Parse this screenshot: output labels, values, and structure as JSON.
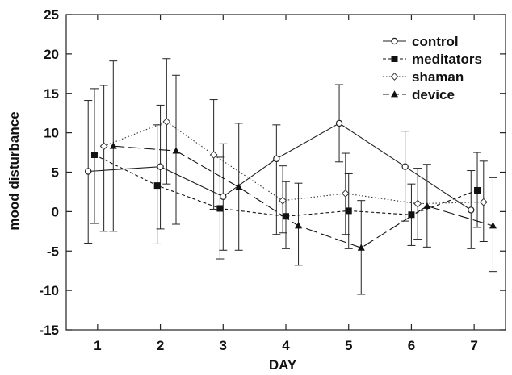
{
  "chart_data": {
    "type": "line",
    "title": "",
    "xlabel": "DAY",
    "ylabel": "mood disturbance",
    "x": [
      1,
      2,
      3,
      4,
      5,
      6,
      7
    ],
    "x_ticks": [
      "1",
      "2",
      "3",
      "4",
      "5",
      "6",
      "7"
    ],
    "xlim": [
      0.5,
      7.5
    ],
    "ylim": [
      -15,
      25
    ],
    "y_ticks": [
      "-15",
      "-10",
      "-5",
      "0",
      "5",
      "10",
      "15",
      "20",
      "25"
    ],
    "grid": false,
    "legend_position": "top-right",
    "series": [
      {
        "name": "control",
        "marker": "open-circle",
        "line_style": "solid",
        "color": "#222222",
        "x": [
          0.85,
          2.0,
          3.0,
          3.85,
          4.85,
          5.9,
          6.95
        ],
        "values": [
          5.1,
          5.7,
          1.9,
          6.7,
          11.2,
          5.7,
          0.2
        ],
        "error_low": [
          -4.0,
          -2.2,
          -4.9,
          -2.9,
          6.3,
          -1.2,
          -4.7
        ],
        "error_high": [
          14.1,
          13.5,
          8.6,
          11.0,
          16.1,
          10.2,
          5.2
        ]
      },
      {
        "name": "meditators",
        "marker": "filled-square",
        "line_style": "dashed",
        "color": "#111111",
        "x": [
          0.95,
          1.95,
          2.95,
          4.0,
          5.0,
          6.0,
          7.05
        ],
        "values": [
          7.2,
          3.3,
          0.4,
          -0.6,
          0.1,
          -0.4,
          2.7
        ],
        "error_low": [
          -1.5,
          -4.1,
          -6.0,
          -4.7,
          -4.7,
          -4.3,
          -2.0
        ],
        "error_high": [
          15.6,
          11.0,
          6.9,
          3.8,
          4.8,
          3.5,
          7.5
        ]
      },
      {
        "name": "shaman",
        "marker": "open-diamond",
        "line_style": "dotted",
        "color": "#333333",
        "x": [
          1.1,
          2.1,
          2.85,
          3.95,
          4.95,
          6.1,
          7.15
        ],
        "values": [
          8.3,
          11.4,
          7.2,
          1.4,
          2.3,
          1.0,
          1.2
        ],
        "error_low": [
          -2.5,
          3.5,
          0.3,
          -2.7,
          -2.9,
          -3.5,
          -3.8
        ],
        "error_high": [
          16.0,
          19.4,
          14.2,
          5.8,
          7.4,
          5.5,
          6.4
        ]
      },
      {
        "name": "device",
        "marker": "filled-triangle",
        "line_style": "long-dash",
        "color": "#111111",
        "x": [
          1.25,
          2.25,
          3.25,
          4.2,
          5.2,
          6.25,
          7.3
        ],
        "values": [
          8.3,
          7.7,
          3.1,
          -1.8,
          -4.6,
          0.7,
          -1.8
        ],
        "error_low": [
          -2.5,
          -1.6,
          -4.9,
          -6.8,
          -10.5,
          -4.5,
          -7.6
        ],
        "error_high": [
          19.1,
          17.3,
          11.2,
          3.6,
          1.4,
          6.0,
          4.3
        ]
      }
    ]
  }
}
